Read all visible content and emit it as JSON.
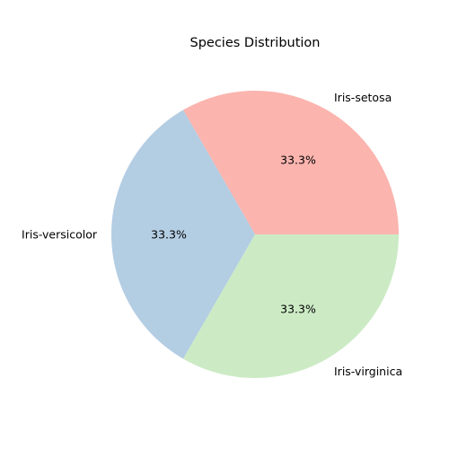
{
  "chart_data": {
    "type": "pie",
    "title": "Species Distribution",
    "categories": [
      "Iris-setosa",
      "Iris-versicolor",
      "Iris-virginica"
    ],
    "values": [
      50,
      50,
      50
    ],
    "percent_labels": [
      "33.3%",
      "33.3%",
      "33.3%"
    ],
    "colors": [
      "#fbb4ae",
      "#b3cde3",
      "#ccebc5"
    ],
    "start_angle_deg": 0,
    "direction": "counterclockwise",
    "legend": "none"
  }
}
